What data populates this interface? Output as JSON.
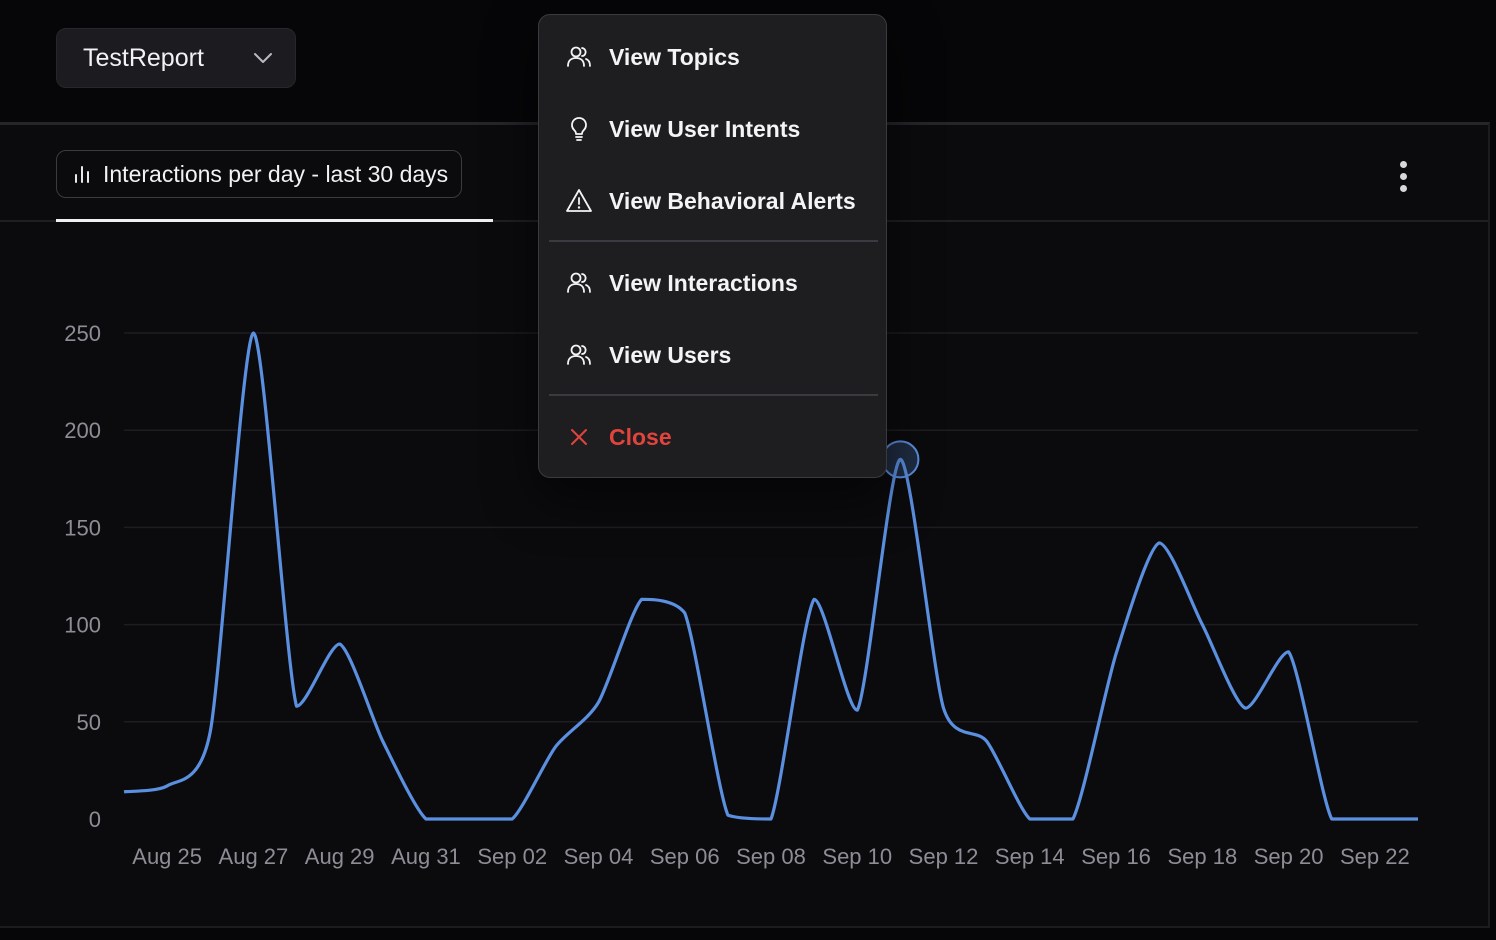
{
  "report_selector": {
    "value": "TestReport"
  },
  "tab": {
    "label": "Interactions per day - last 30 days"
  },
  "menu": {
    "items": [
      {
        "label": "View Topics",
        "icon": "users-icon"
      },
      {
        "label": "View User Intents",
        "icon": "lightbulb-icon"
      },
      {
        "label": "View Behavioral Alerts",
        "icon": "alert-triangle-icon"
      },
      {
        "label": "View Interactions",
        "icon": "users-icon"
      },
      {
        "label": "View Users",
        "icon": "users-icon"
      }
    ],
    "close_label": "Close"
  },
  "colors": {
    "line": "#5b8fe0",
    "close": "#e0443c",
    "background": "#0b0b0e"
  },
  "chart_data": {
    "type": "line",
    "title": "Interactions per day - last 30 days",
    "x": [
      "Aug 24",
      "Aug 25",
      "Aug 26",
      "Aug 27",
      "Aug 28",
      "Aug 29",
      "Aug 30",
      "Aug 31",
      "Sep 01",
      "Sep 02",
      "Sep 03",
      "Sep 04",
      "Sep 05",
      "Sep 06",
      "Sep 07",
      "Sep 08",
      "Sep 09",
      "Sep 10",
      "Sep 11",
      "Sep 12",
      "Sep 13",
      "Sep 14",
      "Sep 15",
      "Sep 16",
      "Sep 17",
      "Sep 18",
      "Sep 19",
      "Sep 20",
      "Sep 21",
      "Sep 22",
      "Sep 23"
    ],
    "xtick_labels": [
      "Aug 25",
      "Aug 27",
      "Aug 29",
      "Aug 31",
      "Sep 02",
      "Sep 04",
      "Sep 06",
      "Sep 08",
      "Sep 10",
      "Sep 12",
      "Sep 14",
      "Sep 16",
      "Sep 18",
      "Sep 20",
      "Sep 22"
    ],
    "series": [
      {
        "values": [
          14,
          17,
          45,
          250,
          58,
          90,
          40,
          0,
          0,
          0,
          37,
          60,
          113,
          106,
          2,
          0,
          113,
          56,
          185,
          57,
          40,
          0,
          0,
          85,
          142,
          100,
          57,
          86,
          0,
          0,
          0
        ]
      }
    ],
    "highlight_index": 18,
    "yticks": [
      0,
      50,
      100,
      150,
      200,
      250
    ],
    "ylim": [
      0,
      250
    ],
    "grid": true,
    "xlabel": "",
    "ylabel": ""
  }
}
